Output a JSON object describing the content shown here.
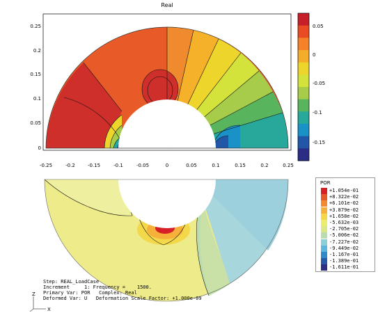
{
  "plot_title": "Real",
  "upper_plot": {
    "x_ticks": [
      "-0.25",
      "-0.2",
      "-0.15",
      "-0.1",
      "-0.05",
      "0",
      "0.05",
      "0.1",
      "0.15",
      "0.2",
      "0.25"
    ],
    "y_ticks": [
      "0.25",
      "0.2",
      "0.15",
      "0.1",
      "0.05",
      "0"
    ],
    "colorbar_ticks": [
      "0.05",
      "0",
      "-0.05",
      "-0.1",
      "-0.15"
    ],
    "colorbar_colors": [
      "#c71f2a",
      "#e94c23",
      "#f5812a",
      "#f4ad2a",
      "#eed52b",
      "#d4e33b",
      "#a6cc4a",
      "#58b55e",
      "#27a89a",
      "#1a92c8",
      "#2157a6",
      "#2b2d85"
    ]
  },
  "legend": {
    "title": "POR",
    "entries": [
      {
        "label": "+1.054e-01",
        "color": "#d61f26"
      },
      {
        "label": "+8.322e-02",
        "color": "#e65a2a"
      },
      {
        "label": "+6.101e-02",
        "color": "#f38a30"
      },
      {
        "label": "+3.879e-02",
        "color": "#f6b13a"
      },
      {
        "label": "+1.658e-02",
        "color": "#f3d84a"
      },
      {
        "label": "-5.632e-03",
        "color": "#eded6c"
      },
      {
        "label": "-2.705e-02",
        "color": "#dbe886"
      },
      {
        "label": "-5.006e-02",
        "color": "#b9dcb0"
      },
      {
        "label": "-7.227e-02",
        "color": "#8ccfd6"
      },
      {
        "label": "-9.449e-02",
        "color": "#5fb6dd"
      },
      {
        "label": "-1.167e-01",
        "color": "#2e8ac8"
      },
      {
        "label": "-1.389e-01",
        "color": "#235ba8"
      },
      {
        "label": "-1.611e-01",
        "color": "#2a3183"
      }
    ]
  },
  "info": {
    "line1": "Step: REAL_LoadCase",
    "line2": "Increment     1: Frequency =    1500.",
    "line3": "Primary Var: POR   Complex: Real",
    "line4": "Deformed Var: U   Deformation Scale Factor: +1.000e-09"
  },
  "triad": {
    "z_label": "Z",
    "x_label": "X"
  }
}
